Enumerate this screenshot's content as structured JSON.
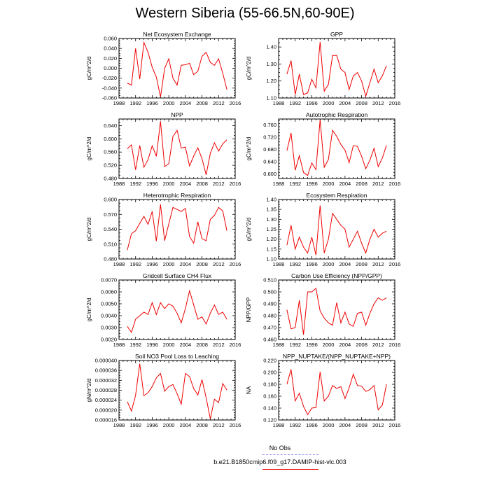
{
  "figure": {
    "title": "Western Siberia (55-66.5N,60-90E)"
  },
  "legend": {
    "items": [
      {
        "label": "No Obs",
        "color": "#9999ee",
        "style": "dashed"
      },
      {
        "label": "b.e21.B1850cmip6.f09_g17.DAMIP-hist-vlc.003",
        "color": "#ee0000",
        "style": "solid"
      }
    ]
  },
  "chart_data": [
    {
      "type": "line",
      "title": "Net Ecosystem Exchange",
      "ylabel": "gC/m^2/d",
      "xlim": [
        1988,
        2016
      ],
      "ylim": [
        -0.06,
        0.06
      ],
      "x_ticks": [
        "1988",
        "1992",
        "1996",
        "2000",
        "2004",
        "2008",
        "2012",
        "2016"
      ],
      "y_ticks": [
        "-0.060",
        "-0.040",
        "-0.020",
        "0.000",
        "0.020",
        "0.040",
        "0.060"
      ],
      "y_tick_values": [
        -0.06,
        -0.04,
        -0.02,
        0.0,
        0.02,
        0.04,
        0.06
      ],
      "color": "#ee0000",
      "x": [
        1990,
        1991,
        1992,
        1993,
        1994,
        1995,
        1996,
        1997,
        1998,
        1999,
        2000,
        2001,
        2002,
        2003,
        2004,
        2005,
        2006,
        2007,
        2008,
        2009,
        2010,
        2011,
        2012,
        2013,
        2014
      ],
      "values": [
        -0.03,
        -0.034,
        0.04,
        -0.022,
        0.052,
        0.032,
        0.002,
        -0.018,
        -0.058,
        0.0,
        0.019,
        -0.02,
        -0.034,
        0.006,
        0.007,
        0.01,
        -0.013,
        -0.006,
        0.024,
        0.032,
        0.012,
        0.006,
        0.019,
        -0.01,
        -0.043
      ]
    },
    {
      "type": "line",
      "title": "GPP",
      "ylabel": "gC/m^2/d",
      "xlim": [
        1988,
        2016
      ],
      "ylim": [
        1.1,
        1.45
      ],
      "x_ticks": [
        "1988",
        "1992",
        "1996",
        "2000",
        "2004",
        "2008",
        "2012",
        "2016"
      ],
      "y_ticks": [
        "1.10",
        "1.20",
        "1.30",
        "1.40"
      ],
      "y_tick_values": [
        1.1,
        1.2,
        1.3,
        1.4
      ],
      "color": "#ee0000",
      "x": [
        1990,
        1991,
        1992,
        1993,
        1994,
        1995,
        1996,
        1997,
        1998,
        1999,
        2000,
        2001,
        2002,
        2003,
        2004,
        2005,
        2006,
        2007,
        2008,
        2009,
        2010,
        2011,
        2012,
        2013,
        2014
      ],
      "values": [
        1.24,
        1.32,
        1.12,
        1.24,
        1.12,
        1.13,
        1.21,
        1.16,
        1.43,
        1.14,
        1.18,
        1.35,
        1.35,
        1.27,
        1.25,
        1.15,
        1.23,
        1.25,
        1.2,
        1.11,
        1.19,
        1.27,
        1.19,
        1.23,
        1.29
      ]
    },
    {
      "type": "line",
      "title": "NPP",
      "ylabel": "gC/m^2/d",
      "xlim": [
        1988,
        2016
      ],
      "ylim": [
        0.48,
        0.66
      ],
      "x_ticks": [
        "1988",
        "1992",
        "1996",
        "2000",
        "2004",
        "2008",
        "2012",
        "2016"
      ],
      "y_ticks": [
        "0.480",
        "0.520",
        "0.560",
        "0.600",
        "0.640"
      ],
      "y_tick_values": [
        0.48,
        0.52,
        0.56,
        0.6,
        0.64
      ],
      "color": "#ee0000",
      "x": [
        1990,
        1991,
        1992,
        1993,
        1994,
        1995,
        1996,
        1997,
        1998,
        1999,
        2000,
        2001,
        2002,
        2003,
        2004,
        2005,
        2006,
        2007,
        2008,
        2009,
        2010,
        2011,
        2012,
        2013,
        2014
      ],
      "values": [
        0.57,
        0.582,
        0.506,
        0.58,
        0.514,
        0.537,
        0.579,
        0.547,
        0.653,
        0.516,
        0.525,
        0.607,
        0.626,
        0.572,
        0.575,
        0.518,
        0.548,
        0.573,
        0.54,
        0.491,
        0.556,
        0.588,
        0.563,
        0.585,
        0.597
      ]
    },
    {
      "type": "line",
      "title": "Autotrophic Respiration",
      "ylabel": "gC/m^2/d",
      "xlim": [
        1988,
        2016
      ],
      "ylim": [
        0.585,
        0.78
      ],
      "x_ticks": [
        "1988",
        "1992",
        "1996",
        "2000",
        "2004",
        "2008",
        "2012",
        "2016"
      ],
      "y_ticks": [
        "0.600",
        "0.640",
        "0.680",
        "0.720",
        "0.760"
      ],
      "y_tick_values": [
        0.6,
        0.64,
        0.68,
        0.72,
        0.76
      ],
      "color": "#ee0000",
      "x": [
        1990,
        1991,
        1992,
        1993,
        1994,
        1995,
        1996,
        1997,
        1998,
        1999,
        2000,
        2001,
        2002,
        2003,
        2004,
        2005,
        2006,
        2007,
        2008,
        2009,
        2010,
        2011,
        2012,
        2013,
        2014
      ],
      "values": [
        0.676,
        0.734,
        0.612,
        0.66,
        0.605,
        0.595,
        0.636,
        0.614,
        0.778,
        0.622,
        0.647,
        0.743,
        0.723,
        0.697,
        0.678,
        0.637,
        0.693,
        0.69,
        0.658,
        0.617,
        0.645,
        0.684,
        0.624,
        0.652,
        0.694
      ]
    },
    {
      "type": "line",
      "title": "Heterotrophic Respiration",
      "ylabel": "gC/m^2/d",
      "xlim": [
        1988,
        2016
      ],
      "ylim": [
        0.48,
        0.6
      ],
      "x_ticks": [
        "1988",
        "1992",
        "1996",
        "2000",
        "2004",
        "2008",
        "2012",
        "2016"
      ],
      "y_ticks": [
        "0.480",
        "0.510",
        "0.540",
        "0.570",
        "0.600"
      ],
      "y_tick_values": [
        0.48,
        0.51,
        0.54,
        0.57,
        0.6
      ],
      "color": "#ee0000",
      "x": [
        1990,
        1991,
        1992,
        1993,
        1994,
        1995,
        1996,
        1997,
        1998,
        1999,
        2000,
        2001,
        2002,
        2003,
        2004,
        2005,
        2006,
        2007,
        2008,
        2009,
        2010,
        2011,
        2012,
        2013,
        2014
      ],
      "values": [
        0.498,
        0.531,
        0.537,
        0.552,
        0.566,
        0.55,
        0.576,
        0.516,
        0.59,
        0.517,
        0.551,
        0.584,
        0.58,
        0.576,
        0.582,
        0.525,
        0.512,
        0.555,
        0.521,
        0.517,
        0.56,
        0.568,
        0.584,
        0.577,
        0.537
      ]
    },
    {
      "type": "line",
      "title": "Ecosystem Respiration",
      "ylabel": "gC/m^2/d",
      "xlim": [
        1988,
        2016
      ],
      "ylim": [
        1.1,
        1.4
      ],
      "x_ticks": [
        "1988",
        "1992",
        "1996",
        "2000",
        "2004",
        "2008",
        "2012",
        "2016"
      ],
      "y_ticks": [
        "1.10",
        "1.15",
        "1.20",
        "1.25",
        "1.30",
        "1.35",
        "1.40"
      ],
      "y_tick_values": [
        1.1,
        1.15,
        1.2,
        1.25,
        1.3,
        1.35,
        1.4
      ],
      "color": "#ee0000",
      "x": [
        1990,
        1991,
        1992,
        1993,
        1994,
        1995,
        1996,
        1997,
        1998,
        1999,
        2000,
        2001,
        2002,
        2003,
        2004,
        2005,
        2006,
        2007,
        2008,
        2009,
        2010,
        2011,
        2012,
        2013,
        2014
      ],
      "values": [
        1.17,
        1.27,
        1.15,
        1.21,
        1.16,
        1.13,
        1.21,
        1.12,
        1.37,
        1.13,
        1.2,
        1.33,
        1.3,
        1.27,
        1.25,
        1.16,
        1.2,
        1.24,
        1.18,
        1.13,
        1.2,
        1.25,
        1.21,
        1.23,
        1.24
      ]
    },
    {
      "type": "line",
      "title": "Gridcell Surface CH4 Flux",
      "ylabel": "gC/m^2/d",
      "xlim": [
        1988,
        2016
      ],
      "ylim": [
        0.002,
        0.007
      ],
      "x_ticks": [
        "1988",
        "1992",
        "1996",
        "2000",
        "2004",
        "2008",
        "2012",
        "2016"
      ],
      "y_ticks": [
        "0.0020",
        "0.0030",
        "0.0040",
        "0.0050",
        "0.0060",
        "0.0070"
      ],
      "y_tick_values": [
        0.002,
        0.003,
        0.004,
        0.005,
        0.006,
        0.007
      ],
      "color": "#ee0000",
      "x": [
        1990,
        1991,
        1992,
        1993,
        1994,
        1995,
        1996,
        1997,
        1998,
        1999,
        2000,
        2001,
        2002,
        2003,
        2004,
        2005,
        2006,
        2007,
        2008,
        2009,
        2010,
        2011,
        2012,
        2013,
        2014
      ],
      "values": [
        0.0031,
        0.0026,
        0.0037,
        0.004,
        0.0043,
        0.0041,
        0.0051,
        0.0041,
        0.0051,
        0.0046,
        0.005,
        0.0048,
        0.0042,
        0.0034,
        0.0046,
        0.0061,
        0.0049,
        0.0037,
        0.0039,
        0.0033,
        0.0042,
        0.0049,
        0.0041,
        0.0043,
        0.0037
      ]
    },
    {
      "type": "line",
      "title": "Carbon Use Efficiency (NPP/GPP)",
      "ylabel": "NPP/GPP",
      "xlim": [
        1988,
        2016
      ],
      "ylim": [
        0.46,
        0.51
      ],
      "x_ticks": [
        "1988",
        "1992",
        "1996",
        "2000",
        "2004",
        "2008",
        "2012",
        "2016"
      ],
      "y_ticks": [
        "0.460",
        "0.470",
        "0.480",
        "0.490",
        "0.500",
        "0.510"
      ],
      "y_tick_values": [
        0.46,
        0.47,
        0.48,
        0.49,
        0.5,
        0.51
      ],
      "color": "#ee0000",
      "x": [
        1990,
        1991,
        1992,
        1993,
        1994,
        1995,
        1996,
        1997,
        1998,
        1999,
        2000,
        2001,
        2002,
        2003,
        2004,
        2005,
        2006,
        2007,
        2008,
        2009,
        2010,
        2011,
        2012,
        2013,
        2014
      ],
      "values": [
        0.485,
        0.469,
        0.47,
        0.493,
        0.464,
        0.5,
        0.5,
        0.503,
        0.484,
        0.478,
        0.474,
        0.472,
        0.491,
        0.474,
        0.483,
        0.473,
        0.471,
        0.482,
        0.483,
        0.472,
        0.482,
        0.49,
        0.495,
        0.493,
        0.495
      ]
    },
    {
      "type": "line",
      "title": "Soil NO3 Pool Loss to Leaching",
      "ylabel": "gN/m^2/d",
      "xlim": [
        1988,
        2016
      ],
      "ylim": [
        1.6e-05,
        4e-05
      ],
      "x_ticks": [
        "1988",
        "1992",
        "1996",
        "2000",
        "2004",
        "2008",
        "2012",
        "2016"
      ],
      "y_ticks": [
        "0.000016",
        "0.000020",
        "0.000024",
        "0.000028",
        "0.000032",
        "0.000036",
        "0.000040"
      ],
      "y_tick_values": [
        1.6e-05,
        2e-05,
        2.4e-05,
        2.8e-05,
        3.2e-05,
        3.6e-05,
        4e-05
      ],
      "color": "#ee0000",
      "x": [
        1990,
        1991,
        1992,
        1993,
        1994,
        1995,
        1996,
        1997,
        1998,
        1999,
        2000,
        2001,
        2002,
        2003,
        2004,
        2005,
        2006,
        2007,
        2008,
        2009,
        2010,
        2011,
        2012,
        2013,
        2014
      ],
      "values": [
        2.34e-05,
        1.96e-05,
        2.6e-05,
        3.87e-05,
        2.58e-05,
        2.7e-05,
        2.95e-05,
        3.3e-05,
        3.48e-05,
        2.76e-05,
        2.95e-05,
        3.03e-05,
        2.66e-05,
        2.24e-05,
        3.48e-05,
        3.35e-05,
        2.87e-05,
        2.61e-05,
        3.23e-05,
        2.5e-05,
        1.64e-05,
        2.44e-05,
        2.3e-05,
        3.07e-05,
        2.81e-05
      ]
    },
    {
      "type": "line",
      "title": "NPP_NUPTAKE/(NPP_NUPTAKE+NPP)",
      "ylabel": "NA",
      "xlim": [
        1988,
        2016
      ],
      "ylim": [
        0.12,
        0.22
      ],
      "x_ticks": [
        "1988",
        "1992",
        "1996",
        "2000",
        "2004",
        "2008",
        "2012",
        "2016"
      ],
      "y_ticks": [
        "0.120",
        "0.140",
        "0.160",
        "0.180",
        "0.200",
        "0.220"
      ],
      "y_tick_values": [
        0.12,
        0.14,
        0.16,
        0.18,
        0.2,
        0.22
      ],
      "color": "#ee0000",
      "x": [
        1990,
        1991,
        1992,
        1993,
        1994,
        1995,
        1996,
        1997,
        1998,
        1999,
        2000,
        2001,
        2002,
        2003,
        2004,
        2005,
        2006,
        2007,
        2008,
        2009,
        2010,
        2011,
        2012,
        2013,
        2014
      ],
      "values": [
        0.18,
        0.205,
        0.152,
        0.165,
        0.143,
        0.129,
        0.14,
        0.141,
        0.201,
        0.152,
        0.16,
        0.178,
        0.173,
        0.176,
        0.156,
        0.174,
        0.197,
        0.178,
        0.177,
        0.168,
        0.171,
        0.178,
        0.137,
        0.145,
        0.18
      ]
    }
  ]
}
